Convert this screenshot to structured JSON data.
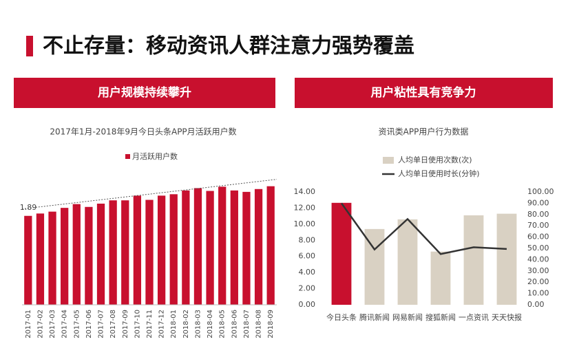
{
  "title": "不止存量：移动资讯人群注意力强势覆盖",
  "chart_data": [
    {
      "type": "bar",
      "header": "用户规模持续攀升",
      "title": "2017年1月-2018年9月今日头条APP月活跃用户数",
      "categories": [
        "2017-01",
        "2017-02",
        "2017-03",
        "2017-04",
        "2017-05",
        "2017-06",
        "2017-07",
        "2017-08",
        "2017-09",
        "2017-10",
        "2017-11",
        "2017-12",
        "2018-01",
        "2018-02",
        "2018-03",
        "2018-04",
        "2018-05",
        "2018-06",
        "2018-07",
        "2018-08",
        "2018-09"
      ],
      "series": [
        {
          "name": "月活跃用户数",
          "color": "#c8102e",
          "values": [
            1.89,
            1.94,
            1.98,
            2.06,
            2.14,
            2.08,
            2.15,
            2.22,
            2.22,
            2.32,
            2.23,
            2.32,
            2.35,
            2.43,
            2.48,
            2.42,
            2.51,
            2.43,
            2.4,
            2.46,
            2.52
          ]
        }
      ],
      "data_labels": "first",
      "trendline": true
    },
    {
      "type": "combo",
      "header": "用户粘性具有竞争力",
      "title": "资讯类APP用户行为数据",
      "categories": [
        "今日头条",
        "腾讯新闻",
        "网易新闻",
        "搜狐新闻",
        "一点资讯",
        "天天快报"
      ],
      "series": [
        {
          "name": "人均单日使用次数(次)",
          "type": "bar",
          "color": "#d9d1c3",
          "colors": [
            "#c8102e",
            "#d9d1c3",
            "#d9d1c3",
            "#d9d1c3",
            "#d9d1c3",
            "#d9d1c3"
          ],
          "values": [
            12.65,
            9.4,
            10.6,
            6.6,
            11.1,
            11.3
          ]
        },
        {
          "name": "人均单日使用时长(分钟)",
          "type": "line",
          "color": "#333333",
          "axis": "y2",
          "values": [
            90,
            49,
            76,
            45,
            51,
            49.5
          ]
        }
      ],
      "ylim": [
        0,
        14
      ],
      "yticks": [
        {
          "value": 0,
          "label": "0.00"
        },
        {
          "value": 2,
          "label": "2.00"
        },
        {
          "value": 4,
          "label": "4.00"
        },
        {
          "value": 6,
          "label": "6.00"
        },
        {
          "value": 8,
          "label": "8.00"
        },
        {
          "value": 10,
          "label": "10.00"
        },
        {
          "value": 12,
          "label": "12.00"
        },
        {
          "value": 14,
          "label": "14.00"
        }
      ],
      "y2lim": [
        0,
        100
      ],
      "y2ticks": [
        {
          "value": 0,
          "label": "0.00"
        },
        {
          "value": 10,
          "label": "10.00"
        },
        {
          "value": 20,
          "label": "20.00"
        },
        {
          "value": 30,
          "label": "30.00"
        },
        {
          "value": 40,
          "label": "40.00"
        },
        {
          "value": 50,
          "label": "50.00"
        },
        {
          "value": 60,
          "label": "60.00"
        },
        {
          "value": 70,
          "label": "70.00"
        },
        {
          "value": 80,
          "label": "80.00"
        },
        {
          "value": 90,
          "label": "90.00"
        },
        {
          "value": 100,
          "label": "100.00"
        }
      ]
    }
  ]
}
